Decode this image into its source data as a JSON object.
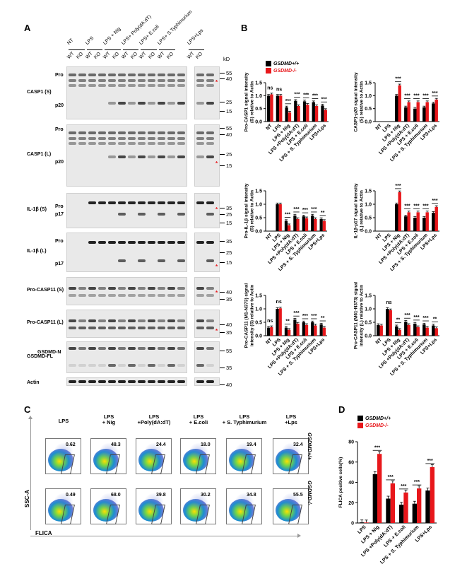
{
  "panels": {
    "a": "A",
    "b": "B",
    "c": "C",
    "d": "D"
  },
  "blot": {
    "groups": [
      "NT",
      "LPS",
      "LPS + Nig",
      "LPS+ Poly(dA:dT)",
      "LPS+ E.coli",
      "LPS+ S.Typhimurium",
      "LPS+Lps"
    ],
    "lanes": [
      "WT",
      "KO",
      "WT",
      "KO",
      "WT",
      "KO",
      "WT",
      "KO",
      "WT",
      "KO",
      "WT",
      "KO",
      "WT",
      "KO"
    ],
    "kd_header": "kD",
    "rows": [
      {
        "name": "CASP1 (S)",
        "subs": [
          "Pro",
          "p20"
        ],
        "markers": [
          "55",
          "40",
          "25",
          "15"
        ]
      },
      {
        "name": "CASP1 (L)",
        "subs": [
          "Pro",
          "p20"
        ],
        "markers": [
          "55",
          "40",
          "25",
          "15"
        ]
      },
      {
        "name": "IL-1β (S)",
        "subs": [
          "Pro",
          "p17"
        ],
        "markers": [
          "35",
          "25",
          "15"
        ]
      },
      {
        "name": "IL-1β (L)",
        "subs": [
          "Pro",
          "p17"
        ],
        "markers": [
          "35",
          "25",
          "15"
        ]
      },
      {
        "name": "Pro-CASP11 (S)",
        "subs": [],
        "markers": [
          "40",
          "35"
        ]
      },
      {
        "name": "Pro-CASP11 (L)",
        "subs": [],
        "markers": [
          "40",
          "35"
        ]
      },
      {
        "name": "GSDMD-FL",
        "subs": [
          "GSDMD-N"
        ],
        "markers": [
          "55",
          "35"
        ]
      },
      {
        "name": "Actin",
        "subs": [],
        "markers": [
          "40"
        ]
      }
    ]
  },
  "legend": {
    "wt": "GSDMD+/+",
    "ko": "GSDMD-/-"
  },
  "sig": {
    "ns": "ns",
    "s3": "***",
    "s2": "**"
  },
  "chart_data": [
    {
      "type": "bar",
      "title": "",
      "ylabel": "Pro-CASP1 signal intensity (S) relative to Actin",
      "ylim": [
        0,
        1.5
      ],
      "ticks": [
        0.0,
        0.5,
        1.0,
        1.5
      ],
      "categories": [
        "NT",
        "LPS",
        "LPS + Nig",
        "LPS +Poly(dA:dT)",
        "LPS + E.coli",
        "LPS + S. Typhimurium",
        "LPS+Lps"
      ],
      "series": [
        {
          "name": "GSDMD+/+",
          "values": [
            1.0,
            1.0,
            0.55,
            0.8,
            0.78,
            0.75,
            0.62
          ]
        },
        {
          "name": "GSDMD-/-",
          "values": [
            1.05,
            1.0,
            0.35,
            0.6,
            0.65,
            0.6,
            0.45
          ]
        }
      ],
      "annotations": [
        "ns",
        "ns",
        "***",
        "***",
        "***",
        "***",
        "***"
      ]
    },
    {
      "type": "bar",
      "title": "",
      "ylabel": "CASP1-p20 signal intensity (S) relative to Actin",
      "ylim": [
        0,
        1.5
      ],
      "ticks": [
        0.0,
        0.5,
        1.0,
        1.5
      ],
      "categories": [
        "NT",
        "LPS",
        "LPS + Nig",
        "LPS +Poly(dA:dT)",
        "LPS + E.coli",
        "LPS + S. Typhimurium",
        "LPS+Lps"
      ],
      "series": [
        {
          "name": "GSDMD+/+",
          "values": [
            0,
            0,
            1.0,
            0.55,
            0.5,
            0.55,
            0.7
          ]
        },
        {
          "name": "GSDMD-/-",
          "values": [
            0,
            0,
            1.4,
            0.75,
            0.75,
            0.75,
            0.85
          ]
        }
      ],
      "annotations": [
        "",
        "",
        "***",
        "***",
        "***",
        "***",
        "***"
      ]
    },
    {
      "type": "bar",
      "title": "",
      "ylabel": "Pro-IL-1β signal intensity (S) relative to Actin",
      "ylim": [
        0,
        1.5
      ],
      "ticks": [
        0.0,
        0.5,
        1.0,
        1.5
      ],
      "categories": [
        "NT",
        "LPS",
        "LPS + Nig",
        "LPS +Poly(dA:dT)",
        "LPS + E.coli",
        "LPS + S. Typhimurium",
        "LPS+Lps"
      ],
      "series": [
        {
          "name": "GSDMD+/+",
          "values": [
            0,
            1.0,
            0.38,
            0.58,
            0.55,
            0.58,
            0.45
          ]
        },
        {
          "name": "GSDMD-/-",
          "values": [
            0,
            1.0,
            0.22,
            0.45,
            0.48,
            0.45,
            0.38
          ]
        }
      ],
      "annotations": [
        "",
        "",
        "***",
        "***",
        "***",
        "***",
        "**"
      ]
    },
    {
      "type": "bar",
      "title": "",
      "ylabel": "IL-1β-p17 signal intensity (L) relative to Actin",
      "ylim": [
        0,
        1.5
      ],
      "ticks": [
        0.0,
        0.5,
        1.0,
        1.5
      ],
      "categories": [
        "NT",
        "LPS",
        "LPS + Nig",
        "LPS +Poly(dA:dT)",
        "LPS + E.coli",
        "LPS + S. Typhimurium",
        "LPS+Lps"
      ],
      "series": [
        {
          "name": "GSDMD+/+",
          "values": [
            0,
            0,
            1.0,
            0.55,
            0.5,
            0.5,
            0.68
          ]
        },
        {
          "name": "GSDMD-/-",
          "values": [
            0,
            0,
            1.45,
            0.7,
            0.7,
            0.7,
            0.9
          ]
        }
      ],
      "annotations": [
        "",
        "",
        "***",
        "***",
        "***",
        "***",
        "***"
      ]
    },
    {
      "type": "bar",
      "title": "",
      "ylabel": "Pro-CASP11 (M1-N373) signal intensity (S) relative to Actin",
      "ylim": [
        0,
        1.5
      ],
      "ticks": [
        0.0,
        0.5,
        1.0,
        1.5
      ],
      "categories": [
        "NT",
        "LPS",
        "LPS + Nig",
        "LPS +Poly(dA:dT)",
        "LPS + E.coli",
        "LPS + S. Typhimurium",
        "LPS+Lps"
      ],
      "series": [
        {
          "name": "GSDMD+/+",
          "values": [
            0.3,
            1.0,
            0.3,
            0.6,
            0.5,
            0.5,
            0.42
          ]
        },
        {
          "name": "GSDMD-/-",
          "values": [
            0.32,
            1.02,
            0.22,
            0.45,
            0.4,
            0.38,
            0.3
          ]
        }
      ],
      "annotations": [
        "ns",
        "ns",
        "**",
        "***",
        "***",
        "***",
        "**"
      ]
    },
    {
      "type": "bar",
      "title": "",
      "ylabel": "Pro-CASP11 (M61-N373) signal intensity (L) relative to Actin",
      "ylim": [
        0,
        1.5
      ],
      "ticks": [
        0.0,
        0.5,
        1.0,
        1.5
      ],
      "categories": [
        "NT",
        "LPS",
        "LPS + Nig",
        "LPS +Poly(dA:dT)",
        "LPS + E.coli",
        "LPS + S. Typhimurium",
        "LPS+Lps"
      ],
      "series": [
        {
          "name": "GSDMD+/+",
          "values": [
            0.4,
            1.0,
            0.35,
            0.52,
            0.45,
            0.42,
            0.38
          ]
        },
        {
          "name": "GSDMD-/-",
          "values": [
            0.38,
            0.95,
            0.22,
            0.4,
            0.32,
            0.3,
            0.28
          ]
        }
      ],
      "annotations": [
        "",
        "ns",
        "**",
        "***",
        "***",
        "***",
        "**"
      ]
    },
    {
      "type": "bar",
      "title": "",
      "ylabel": "FLICA positive cells(%)",
      "ylim": [
        0,
        80
      ],
      "ticks": [
        0,
        20,
        40,
        60,
        80
      ],
      "categories": [
        "LPS",
        "LPS + Nig",
        "LPS +Poly(dA:dT)",
        "LPS + E.coli",
        "LPS + S. Typhimurium",
        "LPS+Lps"
      ],
      "series": [
        {
          "name": "GSDMD+/+",
          "values": [
            0.6,
            48,
            24,
            18,
            19,
            32
          ]
        },
        {
          "name": "GSDMD-/-",
          "values": [
            0.5,
            68,
            39,
            30,
            34,
            55
          ]
        }
      ],
      "annotations": [
        "",
        "***",
        "***",
        "***",
        "***",
        "***"
      ]
    }
  ],
  "flow": {
    "titles": [
      "LPS",
      "LPS\n+ Nig",
      "LPS\n+Poly(dA:dT)",
      "LPS\n+ E.coli",
      "LPS\n+ S. Typhimurium",
      "LPS\n+Lps"
    ],
    "wt_values": [
      "0.62",
      "48.3",
      "24.4",
      "18.0",
      "19.4",
      "32.4"
    ],
    "ko_values": [
      "0.49",
      "68.0",
      "39.8",
      "30.2",
      "34.8",
      "55.5"
    ],
    "xlabel": "FLICA",
    "ylabel": "SSC-A",
    "row_wt": "GSDMD+/+",
    "row_ko": "GSDMD-/-"
  }
}
